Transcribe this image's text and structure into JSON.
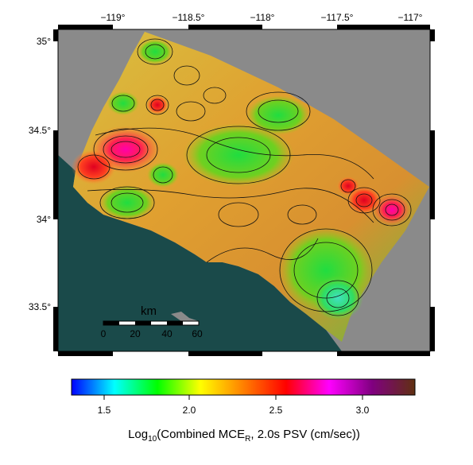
{
  "map": {
    "colors": {
      "land_mask": "#8a8a8a",
      "ocean": "#1a4a4a",
      "frame_black": "#000000"
    },
    "lon_ticks": [
      "−119°",
      "−118.5°",
      "−118°",
      "−117.5°",
      "−117°"
    ],
    "lat_ticks": [
      "35°",
      "34.5°",
      "34°",
      "33.5°"
    ],
    "scale_bar": {
      "unit": "km",
      "ticks": [
        "0",
        "20",
        "40",
        "60"
      ]
    }
  },
  "colorbar": {
    "stops": [
      "#0000ff",
      "#00ffff",
      "#00ff00",
      "#ffff00",
      "#ff8000",
      "#ff0000",
      "#ff00ff",
      "#800080",
      "#603010"
    ],
    "tick_labels": [
      "1.5",
      "2.0",
      "2.5",
      "3.0"
    ],
    "title_prefix": "Log",
    "title_sub": "10",
    "title_mid": "(Combined MCE",
    "title_sub2": "R",
    "title_suffix": ", 2.0s PSV (cm/sec))"
  }
}
